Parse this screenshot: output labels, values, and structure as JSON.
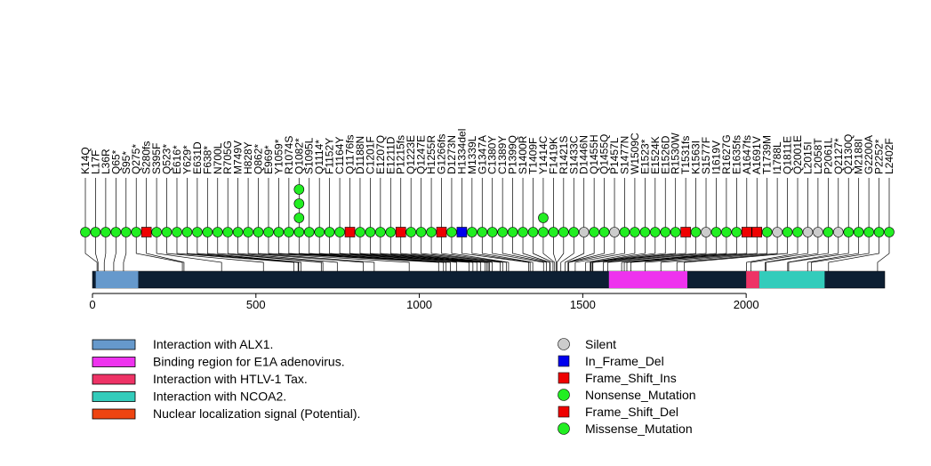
{
  "chart_data": {
    "type": "lollipop",
    "protein_length": 2424,
    "x_axis": {
      "ticks": [
        0,
        500,
        1000,
        1500,
        2000
      ],
      "xlim": [
        0,
        2424
      ]
    },
    "domains": [
      {
        "name": "Interaction with ALX1.",
        "start": 10,
        "end": 140,
        "color": "#6699cc"
      },
      {
        "name": "Binding region for E1A adenovirus.",
        "start": 1580,
        "end": 1820,
        "color": "#ee33ee"
      },
      {
        "name": "Interaction with HTLV-1 Tax.",
        "start": 2000,
        "end": 2040,
        "color": "#ee3366"
      },
      {
        "name": "Interaction with NCOA2.",
        "start": 2040,
        "end": 2240,
        "color": "#33ccbb"
      },
      {
        "name": "Nuclear localization signal (Potential).",
        "start": null,
        "end": null,
        "color": "#ee4411"
      }
    ],
    "mutation_types": [
      {
        "type": "Silent",
        "color": "#cccccc",
        "shape": "circle"
      },
      {
        "type": "In_Frame_Del",
        "color": "#0000ee",
        "shape": "square"
      },
      {
        "type": "Frame_Shift_Ins",
        "color": "#ee0000",
        "shape": "square"
      },
      {
        "type": "Nonsense_Mutation",
        "color": "#22ee22",
        "shape": "circle"
      },
      {
        "type": "Frame_Shift_Del",
        "color": "#ee0000",
        "shape": "square"
      },
      {
        "type": "Missense_Mutation",
        "color": "#22ee22",
        "shape": "circle"
      }
    ],
    "mutations": [
      {
        "label": "K14Q",
        "pos": 14,
        "type": "Missense_Mutation",
        "count": 1
      },
      {
        "label": "L17F",
        "pos": 17,
        "type": "Missense_Mutation",
        "count": 1
      },
      {
        "label": "L36R",
        "pos": 36,
        "type": "Missense_Mutation",
        "count": 1
      },
      {
        "label": "Q65*",
        "pos": 65,
        "type": "Nonsense_Mutation",
        "count": 1
      },
      {
        "label": "S95*",
        "pos": 95,
        "type": "Nonsense_Mutation",
        "count": 1
      },
      {
        "label": "Q275*",
        "pos": 275,
        "type": "Nonsense_Mutation",
        "count": 1
      },
      {
        "label": "S280fs",
        "pos": 280,
        "type": "Frame_Shift_Del",
        "count": 1
      },
      {
        "label": "S395F",
        "pos": 395,
        "type": "Missense_Mutation",
        "count": 1
      },
      {
        "label": "Q523*",
        "pos": 523,
        "type": "Nonsense_Mutation",
        "count": 1
      },
      {
        "label": "E616*",
        "pos": 616,
        "type": "Nonsense_Mutation",
        "count": 1
      },
      {
        "label": "Y629*",
        "pos": 629,
        "type": "Nonsense_Mutation",
        "count": 1
      },
      {
        "label": "E631D",
        "pos": 631,
        "type": "Missense_Mutation",
        "count": 1
      },
      {
        "label": "F638*",
        "pos": 638,
        "type": "Nonsense_Mutation",
        "count": 1
      },
      {
        "label": "N700L",
        "pos": 700,
        "type": "Missense_Mutation",
        "count": 1
      },
      {
        "label": "R705G",
        "pos": 705,
        "type": "Missense_Mutation",
        "count": 1
      },
      {
        "label": "M749V",
        "pos": 749,
        "type": "Missense_Mutation",
        "count": 1
      },
      {
        "label": "H828Y",
        "pos": 828,
        "type": "Missense_Mutation",
        "count": 1
      },
      {
        "label": "Q862*",
        "pos": 862,
        "type": "Nonsense_Mutation",
        "count": 1
      },
      {
        "label": "E969*",
        "pos": 969,
        "type": "Nonsense_Mutation",
        "count": 1
      },
      {
        "label": "Y1059*",
        "pos": 1059,
        "type": "Nonsense_Mutation",
        "count": 1
      },
      {
        "label": "R1074S",
        "pos": 1074,
        "type": "Missense_Mutation",
        "count": 1
      },
      {
        "label": "Q1082*",
        "pos": 1082,
        "type": "Nonsense_Mutation",
        "count": 4
      },
      {
        "label": "S1095L",
        "pos": 1095,
        "type": "Missense_Mutation",
        "count": 1
      },
      {
        "label": "Q1114*",
        "pos": 1114,
        "type": "Nonsense_Mutation",
        "count": 1
      },
      {
        "label": "F1152Y",
        "pos": 1152,
        "type": "Missense_Mutation",
        "count": 1
      },
      {
        "label": "C1164Y",
        "pos": 1164,
        "type": "Missense_Mutation",
        "count": 1
      },
      {
        "label": "Q1176fs",
        "pos": 1176,
        "type": "Frame_Shift_Del",
        "count": 1
      },
      {
        "label": "D1188N",
        "pos": 1188,
        "type": "Missense_Mutation",
        "count": 1
      },
      {
        "label": "C1201F",
        "pos": 1201,
        "type": "Missense_Mutation",
        "count": 1
      },
      {
        "label": "E1207Q",
        "pos": 1207,
        "type": "Missense_Mutation",
        "count": 1
      },
      {
        "label": "E1211D",
        "pos": 1211,
        "type": "Missense_Mutation",
        "count": 1
      },
      {
        "label": "P1215fs",
        "pos": 1215,
        "type": "Frame_Shift_Ins",
        "count": 1
      },
      {
        "label": "Q1223E",
        "pos": 1223,
        "type": "Missense_Mutation",
        "count": 1
      },
      {
        "label": "Q1247E",
        "pos": 1247,
        "type": "Missense_Mutation",
        "count": 1
      },
      {
        "label": "H1255R",
        "pos": 1255,
        "type": "Missense_Mutation",
        "count": 1
      },
      {
        "label": "G1266fs",
        "pos": 1266,
        "type": "Frame_Shift_Del",
        "count": 1
      },
      {
        "label": "D1273N",
        "pos": 1273,
        "type": "Missense_Mutation",
        "count": 1
      },
      {
        "label": "H1334del",
        "pos": 1334,
        "type": "In_Frame_Del",
        "count": 1
      },
      {
        "label": "M1339L",
        "pos": 1339,
        "type": "Missense_Mutation",
        "count": 1
      },
      {
        "label": "G1347A",
        "pos": 1347,
        "type": "Missense_Mutation",
        "count": 1
      },
      {
        "label": "C1380Y",
        "pos": 1380,
        "type": "Missense_Mutation",
        "count": 1
      },
      {
        "label": "C1389Y",
        "pos": 1389,
        "type": "Missense_Mutation",
        "count": 1
      },
      {
        "label": "P1399Q",
        "pos": 1399,
        "type": "Missense_Mutation",
        "count": 1
      },
      {
        "label": "S1400R",
        "pos": 1400,
        "type": "Missense_Mutation",
        "count": 1
      },
      {
        "label": "T1409F",
        "pos": 1409,
        "type": "Missense_Mutation",
        "count": 1
      },
      {
        "label": "Y1414C",
        "pos": 1414,
        "type": "Missense_Mutation",
        "count": 2
      },
      {
        "label": "F1419K",
        "pos": 1419,
        "type": "Missense_Mutation",
        "count": 1
      },
      {
        "label": "R1421S",
        "pos": 1421,
        "type": "Missense_Mutation",
        "count": 1
      },
      {
        "label": "S1433C",
        "pos": 1433,
        "type": "Missense_Mutation",
        "count": 1
      },
      {
        "label": "D1446N",
        "pos": 1446,
        "type": "Silent",
        "count": 1
      },
      {
        "label": "Q1455H",
        "pos": 1455,
        "type": "Missense_Mutation",
        "count": 1
      },
      {
        "label": "Q1455Q",
        "pos": 1455,
        "type": "Missense_Mutation",
        "count": 1
      },
      {
        "label": "P1457L",
        "pos": 1457,
        "type": "Silent",
        "count": 1
      },
      {
        "label": "S1477N",
        "pos": 1477,
        "type": "Missense_Mutation",
        "count": 1
      },
      {
        "label": "W1509C",
        "pos": 1509,
        "type": "Missense_Mutation",
        "count": 1
      },
      {
        "label": "E1523*",
        "pos": 1523,
        "type": "Nonsense_Mutation",
        "count": 1
      },
      {
        "label": "E1524K",
        "pos": 1524,
        "type": "Missense_Mutation",
        "count": 1
      },
      {
        "label": "E1526D",
        "pos": 1526,
        "type": "Missense_Mutation",
        "count": 1
      },
      {
        "label": "R1530W",
        "pos": 1530,
        "type": "Missense_Mutation",
        "count": 1
      },
      {
        "label": "T1531fs",
        "pos": 1531,
        "type": "Frame_Shift_Del",
        "count": 1
      },
      {
        "label": "K1563I",
        "pos": 1563,
        "type": "Missense_Mutation",
        "count": 1
      },
      {
        "label": "S1577F",
        "pos": 1577,
        "type": "Silent",
        "count": 1
      },
      {
        "label": "I1619V",
        "pos": 1619,
        "type": "Missense_Mutation",
        "count": 1
      },
      {
        "label": "R1627G",
        "pos": 1627,
        "type": "Missense_Mutation",
        "count": 1
      },
      {
        "label": "E1635fs",
        "pos": 1635,
        "type": "Missense_Mutation",
        "count": 1
      },
      {
        "label": "A1647fs",
        "pos": 1647,
        "type": "Frame_Shift_Del",
        "count": 1
      },
      {
        "label": "A1691V",
        "pos": 1691,
        "type": "Frame_Shift_Del",
        "count": 1
      },
      {
        "label": "T1739M",
        "pos": 1739,
        "type": "Missense_Mutation",
        "count": 1
      },
      {
        "label": "I1788L",
        "pos": 1788,
        "type": "Silent",
        "count": 1
      },
      {
        "label": "Q1811E",
        "pos": 1811,
        "type": "Missense_Mutation",
        "count": 1
      },
      {
        "label": "Q2001E",
        "pos": 2001,
        "type": "Missense_Mutation",
        "count": 1
      },
      {
        "label": "L2015I",
        "pos": 2015,
        "type": "Silent",
        "count": 1
      },
      {
        "label": "L2058T",
        "pos": 2058,
        "type": "Silent",
        "count": 1
      },
      {
        "label": "P2061L",
        "pos": 2061,
        "type": "Missense_Mutation",
        "count": 1
      },
      {
        "label": "Q2127*",
        "pos": 2127,
        "type": "Silent",
        "count": 1
      },
      {
        "label": "Q2130Q",
        "pos": 2130,
        "type": "Missense_Mutation",
        "count": 1
      },
      {
        "label": "M2188I",
        "pos": 2188,
        "type": "Missense_Mutation",
        "count": 1
      },
      {
        "label": "G2200A",
        "pos": 2200,
        "type": "Missense_Mutation",
        "count": 1
      },
      {
        "label": "P2252*",
        "pos": 2252,
        "type": "Missense_Mutation",
        "count": 1
      },
      {
        "label": "L2402F",
        "pos": 2402,
        "type": "Missense_Mutation",
        "count": 1
      }
    ]
  }
}
